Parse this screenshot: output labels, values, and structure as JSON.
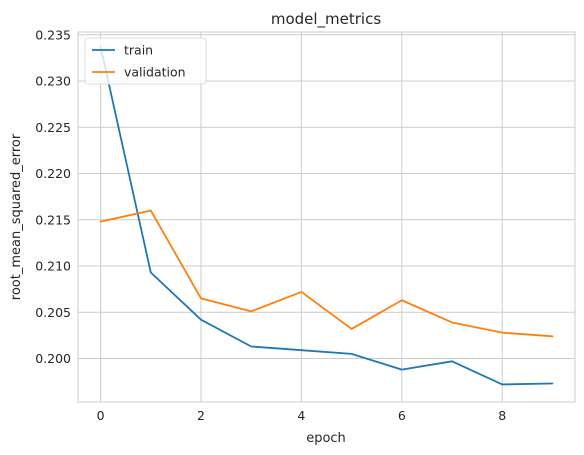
{
  "chart_data": {
    "type": "line",
    "title": "model_metrics",
    "xlabel": "epoch",
    "ylabel": "root_mean_squared_error",
    "x": [
      0,
      1,
      2,
      3,
      4,
      5,
      6,
      7,
      8,
      9
    ],
    "xlim": [
      -0.45,
      9.45
    ],
    "ylim": [
      0.1953,
      0.2353
    ],
    "xticks": [
      0,
      2,
      4,
      6,
      8
    ],
    "yticks": [
      0.2,
      0.205,
      0.21,
      0.215,
      0.22,
      0.225,
      0.23,
      0.235
    ],
    "ytick_labels": [
      "0.200",
      "0.205",
      "0.210",
      "0.215",
      "0.220",
      "0.225",
      "0.230",
      "0.235"
    ],
    "grid": true,
    "legend_position": "top-left",
    "series": [
      {
        "name": "train",
        "color": "#1f77b4",
        "values": [
          0.2337,
          0.2093,
          0.2042,
          0.2013,
          0.2009,
          0.2005,
          0.1988,
          0.1997,
          0.1972,
          0.1973
        ]
      },
      {
        "name": "validation",
        "color": "#ff7f0e",
        "values": [
          0.2148,
          0.216,
          0.2065,
          0.2051,
          0.2072,
          0.2032,
          0.2063,
          0.2039,
          0.2028,
          0.2024
        ]
      }
    ]
  }
}
